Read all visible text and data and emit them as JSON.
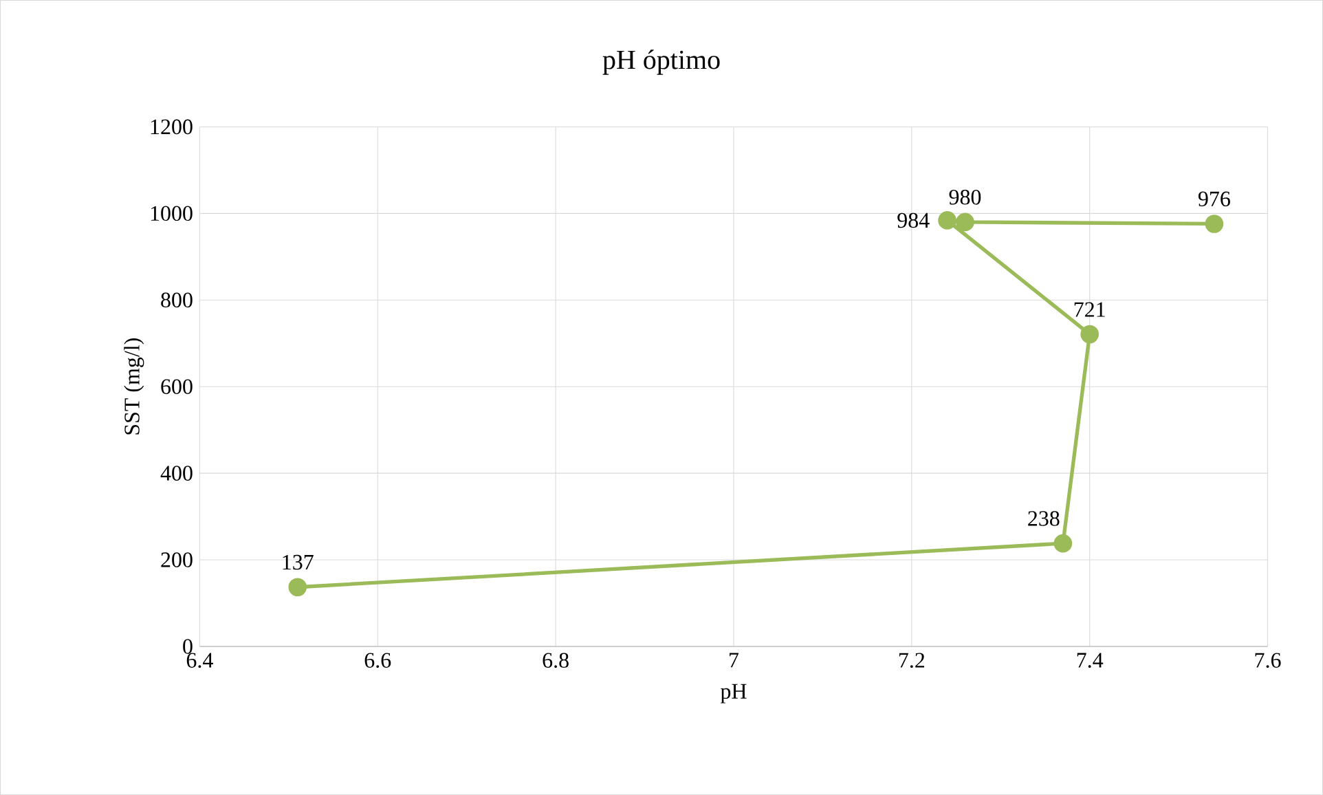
{
  "chart_data": {
    "type": "line",
    "title": "pH óptimo",
    "xlabel": "pH",
    "ylabel": "SST (mg/l)",
    "x": [
      6.51,
      7.37,
      7.4,
      7.24,
      7.26,
      7.54
    ],
    "series": [
      {
        "color": "#9bbb59",
        "values": [
          137,
          238,
          721,
          984,
          980,
          976
        ]
      }
    ],
    "xlim": [
      6.4,
      7.6
    ],
    "ylim": [
      0,
      1200
    ],
    "xticks": [
      6.4,
      6.6,
      6.8,
      7,
      7.2,
      7.4,
      7.6
    ],
    "yticks": [
      0,
      200,
      400,
      600,
      800,
      1000,
      1200
    ],
    "grid": true,
    "marker": "circle",
    "line_style": "solid",
    "data_labels": true
  }
}
